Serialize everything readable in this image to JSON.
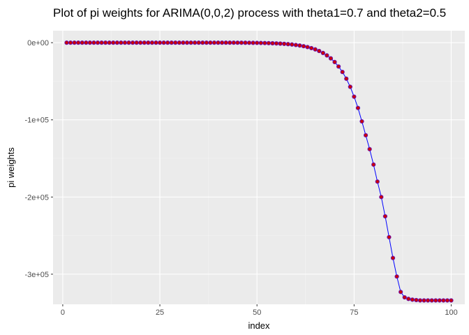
{
  "chart_data": {
    "type": "line",
    "title": "Plot of pi weights for ARIMA(0,0,2) process with theta1=0.7 and theta2=0.5",
    "xlabel": "index",
    "ylabel": "pi weights",
    "x_ticks": [
      0,
      25,
      50,
      75,
      100
    ],
    "y_ticks": [
      0,
      -100000,
      -200000,
      -300000
    ],
    "x_tick_labels": [
      "0",
      "25",
      "50",
      "75",
      "100"
    ],
    "y_tick_labels": [
      "0e+00",
      "-1e+05",
      "-2e+05",
      "-3e+05"
    ],
    "xlim": [
      -2.5,
      103.5
    ],
    "ylim": [
      -339000,
      15500
    ],
    "grid": true,
    "background": "#ebebeb",
    "line_color": "#0000ff",
    "point_fill": "#cc0000",
    "point_edge": "#6a0dad",
    "series": [
      {
        "x": [
          1,
          2,
          3,
          4,
          5,
          6,
          7,
          8,
          9,
          10,
          11,
          12,
          13,
          14,
          15,
          16,
          17,
          18,
          19,
          20,
          21,
          22,
          23,
          24,
          25,
          26,
          27,
          28,
          29,
          30,
          31,
          32,
          33,
          34,
          35,
          36,
          37,
          38,
          39,
          40,
          41,
          42,
          43,
          44,
          45,
          46,
          47,
          48,
          49,
          50,
          51,
          52,
          53,
          54,
          55,
          56,
          57,
          58,
          59,
          60,
          61,
          62,
          63,
          64,
          65,
          66,
          67,
          68,
          69,
          70,
          71,
          72,
          73,
          74,
          75,
          76,
          77,
          78,
          79,
          80,
          81,
          82,
          83,
          84,
          85,
          86,
          87,
          88,
          89,
          90,
          91,
          92,
          93,
          94,
          95,
          96,
          97,
          98,
          99,
          100
        ],
        "y": [
          0,
          0,
          0,
          0,
          0,
          0,
          0,
          0,
          0,
          0,
          0,
          0,
          0,
          0,
          0,
          0,
          0,
          0,
          0,
          0,
          0,
          0,
          0,
          0,
          0,
          0,
          0,
          0,
          0,
          0,
          0,
          0,
          0,
          0,
          0,
          0,
          0,
          0,
          0,
          0,
          0,
          0,
          0,
          0,
          -50,
          -80,
          -120,
          -160,
          -220,
          -290,
          -380,
          -490,
          -620,
          -780,
          -980,
          -1230,
          -1540,
          -1920,
          -2390,
          -2970,
          -3690,
          -4580,
          -5680,
          -7040,
          -8720,
          -10800,
          -13350,
          -16500,
          -20360,
          -25100,
          -30900,
          -38000,
          -46700,
          -57200,
          -70000,
          -84600,
          -102000,
          -120000,
          -138000,
          -158000,
          -180000,
          -200000,
          -225000,
          -252000,
          -279000,
          -303000,
          -323000,
          -330000,
          -332000,
          -333000,
          -333500,
          -334000,
          -334000,
          -334000,
          -334000,
          -334000,
          -334000,
          -334000,
          -334000,
          -334000
        ]
      }
    ]
  }
}
